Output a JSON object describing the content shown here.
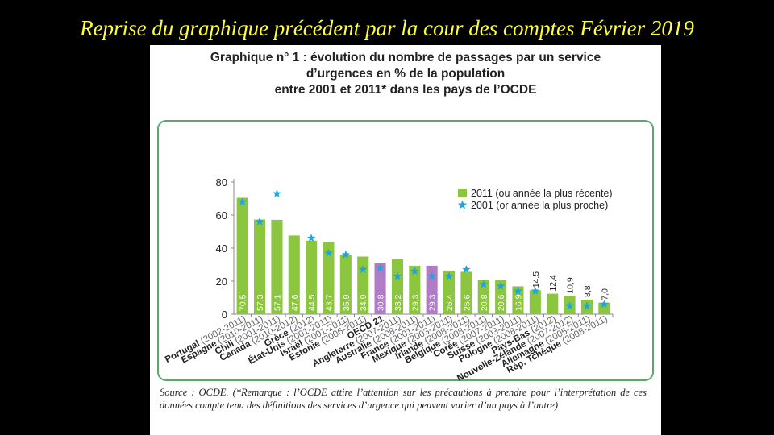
{
  "slide": {
    "title": "Reprise du graphique précédent par la cour des comptes Février 2019"
  },
  "chart_title": {
    "line1": "Graphique n° 1 : évolution du nombre de passages par un service",
    "line2": "d’urgences en % de la population",
    "line3": "entre 2001 et 2011* dans les pays de l’OCDE"
  },
  "source_note": "Source : OCDE. (*Remarque : l’OCDE attire l’attention sur les précautions à prendre pour l’interprétation de ces données compte tenu des définitions des services d’urgence qui peuvent varier d’un pays à l’autre)",
  "colors": {
    "bar": "#8cc63f",
    "highlight": "#b07cc6",
    "star": "#1aa6e0",
    "frame": "#5aa86a",
    "text": "#222222"
  },
  "chart_data": {
    "type": "bar",
    "ylim": [
      0,
      80
    ],
    "yticks": [
      "0",
      "20",
      "40",
      "60",
      "80"
    ],
    "legend": {
      "position": "top-right",
      "series_2011": "2011 (ou année la plus récente)",
      "series_2001": "2001 (or année la plus proche)"
    },
    "categories": [
      {
        "country": "Portugal",
        "years": "(2002-2011)",
        "v2011": 70.5,
        "label": "70,5",
        "v2001": 68
      },
      {
        "country": "Espagne",
        "years": "(2010-2011)",
        "v2011": 57.3,
        "label": "57,3",
        "v2001": 56
      },
      {
        "country": "Chili",
        "years": "(2001-2011)",
        "v2011": 57.1,
        "label": "57,1",
        "v2001": 73
      },
      {
        "country": "Canada",
        "years": "(2010-2012)",
        "v2011": 47.6,
        "label": "47,6",
        "v2001": null
      },
      {
        "country": "Grèce",
        "years": "(2012)",
        "v2011": 44.5,
        "label": "44,5",
        "v2001": 46
      },
      {
        "country": "État-Unis",
        "years": "(2001-2011)",
        "v2011": 43.7,
        "label": "43,7",
        "v2001": 37
      },
      {
        "country": "Israël",
        "years": "(2001-2011)",
        "v2011": 35.9,
        "label": "35,9",
        "v2001": 36
      },
      {
        "country": "Estonie",
        "years": "(2006-2011)",
        "v2011": 34.9,
        "label": "34,9",
        "v2001": 27
      },
      {
        "country": "OECD 21",
        "years": "",
        "v2011": 30.8,
        "label": "30,8",
        "v2001": 28,
        "highlight": true
      },
      {
        "country": "Angleterre",
        "years": "(2007-2011)",
        "v2011": 33.2,
        "label": "33,2",
        "v2001": 23
      },
      {
        "country": "Australie",
        "years": "(2008-2011)",
        "v2011": 29.3,
        "label": "29,3",
        "v2001": 26
      },
      {
        "country": "France",
        "years": "(2001-2011)",
        "v2011": 29.3,
        "label": "29,3",
        "v2001": 23,
        "highlight": true
      },
      {
        "country": "Mexique",
        "years": "(2003-2011)",
        "v2011": 26.4,
        "label": "26,4",
        "v2001": 23
      },
      {
        "country": "Irlande",
        "years": "(2008-2011)",
        "v2011": 25.6,
        "label": "25,6",
        "v2001": 27
      },
      {
        "country": "Belgique",
        "years": "(2008-2011)",
        "v2011": 20.8,
        "label": "20,8",
        "v2001": 18
      },
      {
        "country": "Corée",
        "years": "(2007-2011)",
        "v2011": 20.6,
        "label": "20,6",
        "v2001": 17
      },
      {
        "country": "Suisse",
        "years": "(2003-2011)",
        "v2011": 16.9,
        "label": "16,9",
        "v2001": 14
      },
      {
        "country": "Pologne",
        "years": "(2008-2011)",
        "v2011": 14.5,
        "label": "14,5",
        "v2001": 14
      },
      {
        "country": "Pays-Bas",
        "years": "(2012)",
        "v2011": 12.4,
        "label": "12,4",
        "v2001": null
      },
      {
        "country": "Nouvelle-Zélande",
        "years": "(2007-2012)",
        "v2011": 10.9,
        "label": "10,9",
        "v2001": 5
      },
      {
        "country": "Allemagne",
        "years": "(2005-2011)",
        "v2011": 8.8,
        "label": "8,8",
        "v2001": 5
      },
      {
        "country": "Rép. Tchèque",
        "years": "(2008-2011)",
        "v2011": 7.0,
        "label": "7,0",
        "v2001": 6
      }
    ]
  }
}
